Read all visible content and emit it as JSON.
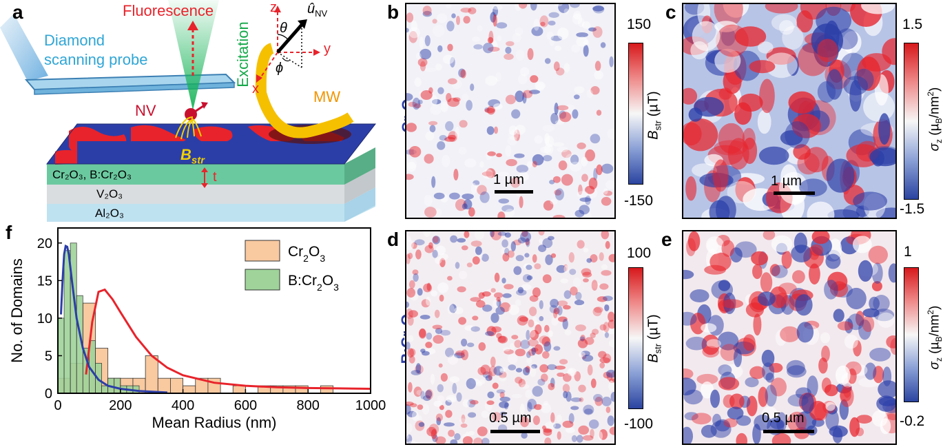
{
  "panel_labels": {
    "a": "a",
    "b": "b",
    "c": "c",
    "d": "d",
    "e": "e",
    "f": "f"
  },
  "schematic": {
    "fluorescence": "Fluorescence",
    "excitation": "Excitation",
    "probe_line1": "Diamond",
    "probe_line2": "scanning probe",
    "nv": "NV",
    "mw": "MW",
    "bstr_main": "B",
    "bstr_sub": "str",
    "t_label": "t",
    "axis_z": "z",
    "axis_y": "y",
    "axis_x": "x",
    "theta": "θ",
    "phi": "ϕ",
    "u_nv_main": "û",
    "u_nv_sub": "NV",
    "layer1": "Cr₂O₃, B:Cr₂O₃",
    "layer2": "V₂O₃",
    "layer3": "Al₂O₃"
  },
  "maps": {
    "b": {
      "scale": "1 µm",
      "cbar_max": "150",
      "cbar_min": "-150",
      "cbar_label": "Bstr (µT)",
      "row_label": "Cr2O3"
    },
    "c": {
      "scale": "1 µm",
      "cbar_max": "1.5",
      "cbar_min": "-1.5",
      "cbar_label": "σz (µB/nm2)"
    },
    "d": {
      "scale": "0.5 µm",
      "cbar_max": "100",
      "cbar_min": "-100",
      "cbar_label": "Bstr (µT)",
      "row_label": "B:Cr2O3"
    },
    "e": {
      "scale": "0.5 µm",
      "cbar_max": "1",
      "cbar_min": "-0.2",
      "cbar_label": "σz (µB/nm2)"
    }
  },
  "colors": {
    "red": "#e8232b",
    "blue": "#2b3ea8",
    "green_fill": "#9fd39a",
    "orange_fill": "#f9c9a0",
    "fit_red": "#e8232b",
    "fit_blue": "#2b3ea8"
  },
  "chart_data": {
    "type": "bar",
    "title": "",
    "xlabel": "Mean Radius (nm)",
    "ylabel": "No. of Domains",
    "xlim": [
      0,
      1000
    ],
    "ylim": [
      0,
      22
    ],
    "xticks": [
      "0",
      "200",
      "400",
      "600",
      "800",
      "1000"
    ],
    "yticks": [
      "0",
      "5",
      "10",
      "15",
      "20"
    ],
    "legend": "top-right",
    "series": [
      {
        "name": "Cr2O3",
        "legend_main": "Cr",
        "bin_width": 40,
        "bins": [
          [
            20,
            2
          ],
          [
            60,
            4
          ],
          [
            100,
            12
          ],
          [
            140,
            6
          ],
          [
            180,
            2
          ],
          [
            220,
            2
          ],
          [
            260,
            2
          ],
          [
            300,
            5
          ],
          [
            340,
            2
          ],
          [
            380,
            2
          ],
          [
            420,
            1
          ],
          [
            460,
            2
          ],
          [
            500,
            2
          ],
          [
            580,
            1
          ],
          [
            660,
            1
          ],
          [
            700,
            1
          ],
          [
            740,
            1
          ],
          [
            780,
            1
          ],
          [
            860,
            1
          ]
        ]
      },
      {
        "name": "B:Cr2O3",
        "legend_main": "B:Cr",
        "bin_width": 20,
        "bins": [
          [
            10,
            10
          ],
          [
            30,
            19
          ],
          [
            50,
            20
          ],
          [
            70,
            13
          ],
          [
            90,
            6
          ],
          [
            110,
            7
          ],
          [
            130,
            4
          ],
          [
            150,
            1
          ],
          [
            170,
            2
          ],
          [
            190,
            2
          ],
          [
            210,
            1
          ],
          [
            230,
            1
          ],
          [
            250,
            1
          ]
        ]
      }
    ],
    "fits": [
      {
        "name": "Cr2O3 fit",
        "x": [
          90,
          110,
          130,
          150,
          175,
          200,
          250,
          300,
          350,
          400,
          500,
          600,
          700,
          800,
          900,
          1000
        ],
        "y": [
          2.5,
          9.5,
          13.5,
          13.8,
          12.5,
          10.8,
          7.5,
          5.0,
          3.4,
          2.4,
          1.4,
          1.0,
          0.8,
          0.7,
          0.65,
          0.6
        ]
      },
      {
        "name": "B:Cr2O3 fit",
        "x": [
          10,
          15,
          20,
          25,
          30,
          35,
          45,
          60,
          80,
          100,
          130,
          160,
          200,
          260,
          350
        ],
        "y": [
          10.5,
          15,
          18.5,
          19.6,
          19.5,
          18.5,
          15,
          10,
          6,
          3.5,
          1.8,
          1.0,
          0.6,
          0.3,
          0.1
        ]
      }
    ]
  }
}
